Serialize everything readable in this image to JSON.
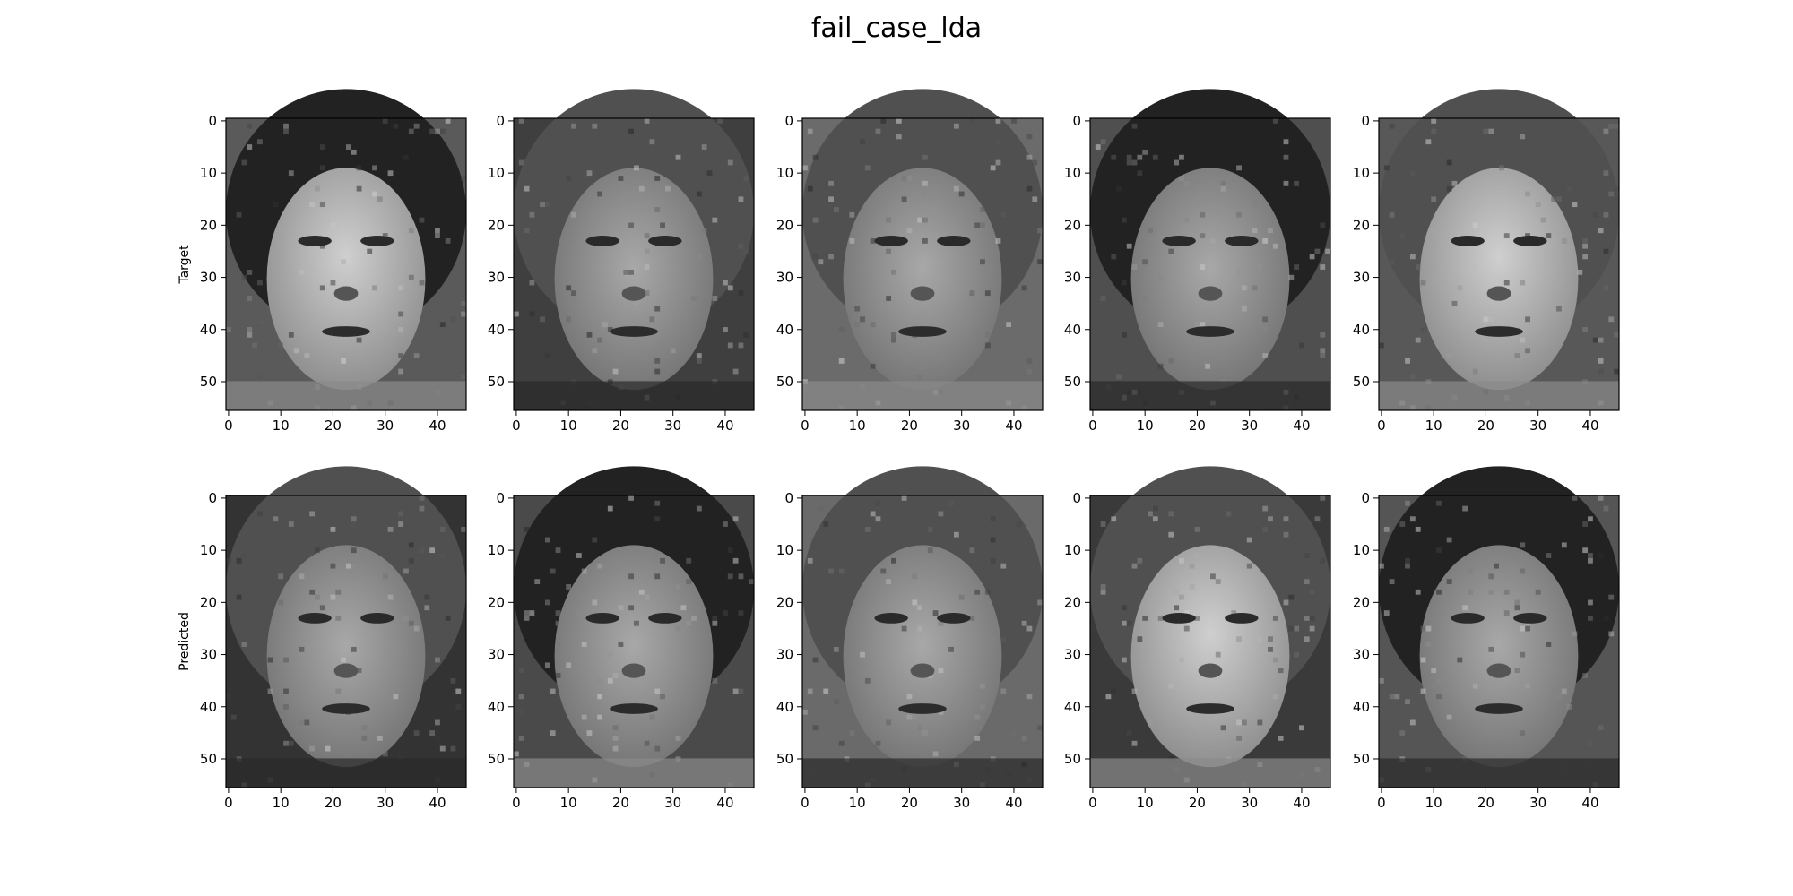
{
  "title": "fail_case_lda",
  "chart_data": {
    "type": "image-grid",
    "title": "fail_case_lda",
    "rows": [
      {
        "label": "Target",
        "panels": [
          {
            "xticks": [
              "0",
              "10",
              "20",
              "30",
              "40"
            ],
            "yticks": [
              "0",
              "10",
              "20",
              "30",
              "40",
              "50"
            ],
            "xlim": [
              0,
              46
            ],
            "ylim": [
              56,
              0
            ]
          },
          {
            "xticks": [
              "0",
              "10",
              "20",
              "30",
              "40"
            ],
            "yticks": [
              "0",
              "10",
              "20",
              "30",
              "40",
              "50"
            ],
            "xlim": [
              0,
              46
            ],
            "ylim": [
              56,
              0
            ]
          },
          {
            "xticks": [
              "0",
              "10",
              "20",
              "30",
              "40"
            ],
            "yticks": [
              "0",
              "10",
              "20",
              "30",
              "40",
              "50"
            ],
            "xlim": [
              0,
              46
            ],
            "ylim": [
              56,
              0
            ]
          },
          {
            "xticks": [
              "0",
              "10",
              "20",
              "30",
              "40"
            ],
            "yticks": [
              "0",
              "10",
              "20",
              "30",
              "40",
              "50"
            ],
            "xlim": [
              0,
              46
            ],
            "ylim": [
              56,
              0
            ]
          },
          {
            "xticks": [
              "0",
              "10",
              "20",
              "30",
              "40"
            ],
            "yticks": [
              "0",
              "10",
              "20",
              "30",
              "40",
              "50"
            ],
            "xlim": [
              0,
              46
            ],
            "ylim": [
              56,
              0
            ]
          }
        ]
      },
      {
        "label": "Predicted",
        "panels": [
          {
            "xticks": [
              "0",
              "10",
              "20",
              "30",
              "40"
            ],
            "yticks": [
              "0",
              "10",
              "20",
              "30",
              "40",
              "50"
            ],
            "xlim": [
              0,
              46
            ],
            "ylim": [
              56,
              0
            ]
          },
          {
            "xticks": [
              "0",
              "10",
              "20",
              "30",
              "40"
            ],
            "yticks": [
              "0",
              "10",
              "20",
              "30",
              "40",
              "50"
            ],
            "xlim": [
              0,
              46
            ],
            "ylim": [
              56,
              0
            ]
          },
          {
            "xticks": [
              "0",
              "10",
              "20",
              "30",
              "40"
            ],
            "yticks": [
              "0",
              "10",
              "20",
              "30",
              "40",
              "50"
            ],
            "xlim": [
              0,
              46
            ],
            "ylim": [
              56,
              0
            ]
          },
          {
            "xticks": [
              "0",
              "10",
              "20",
              "30",
              "40"
            ],
            "yticks": [
              "0",
              "10",
              "20",
              "30",
              "40",
              "50"
            ],
            "xlim": [
              0,
              46
            ],
            "ylim": [
              56,
              0
            ]
          },
          {
            "xticks": [
              "0",
              "10",
              "20",
              "30",
              "40"
            ],
            "yticks": [
              "0",
              "10",
              "20",
              "30",
              "40",
              "50"
            ],
            "xlim": [
              0,
              46
            ],
            "ylim": [
              56,
              0
            ]
          }
        ]
      }
    ],
    "colormap": "gray",
    "grid": false
  }
}
